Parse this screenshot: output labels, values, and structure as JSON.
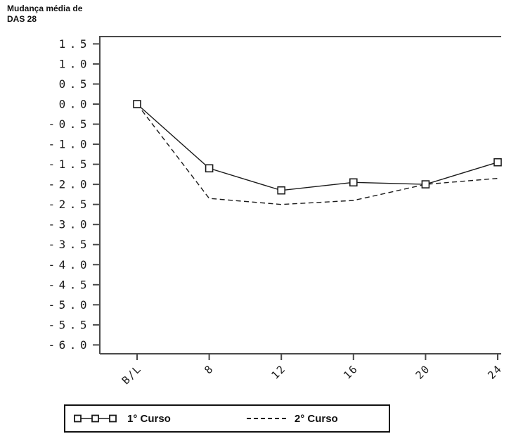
{
  "title": {
    "line1": "Mudança média de",
    "line2": "DAS 28"
  },
  "chart_data": {
    "type": "line",
    "title": "Mudança média de DAS 28",
    "xlabel": "",
    "ylabel": "Mudança média de DAS 28",
    "x_categories": [
      "B/L",
      "8",
      "12",
      "16",
      "20",
      "24"
    ],
    "yticks": [
      1.5,
      1.0,
      0.5,
      0.0,
      -0.5,
      -1.0,
      -1.5,
      -2.0,
      -2.5,
      -3.0,
      -3.5,
      -4.0,
      -4.5,
      -5.0,
      -5.5,
      -6.0
    ],
    "ylim": [
      -6.0,
      1.5
    ],
    "ytick_step": 0.5,
    "grid": false,
    "legend_position": "bottom",
    "series": [
      {
        "name": "1° Curso",
        "line_style": "solid",
        "marker": "square",
        "values": [
          0.0,
          -1.6,
          -2.15,
          -1.95,
          -2.0,
          -1.45
        ]
      },
      {
        "name": "2° Curso",
        "line_style": "dashed",
        "marker": "none",
        "values": [
          0.0,
          -2.35,
          -2.5,
          -2.4,
          -2.0,
          -1.85
        ]
      }
    ],
    "colors": {
      "series": "#1a1a1a",
      "axis": "#4a4a4a",
      "tick_label": "#1a1a1a",
      "marker_fill": "#ffffff"
    }
  },
  "legend": {
    "entries": [
      {
        "label": "1° Curso",
        "sample": "solid-line-with-square-markers"
      },
      {
        "label": "2° Curso",
        "sample": "dashed-line"
      }
    ]
  }
}
